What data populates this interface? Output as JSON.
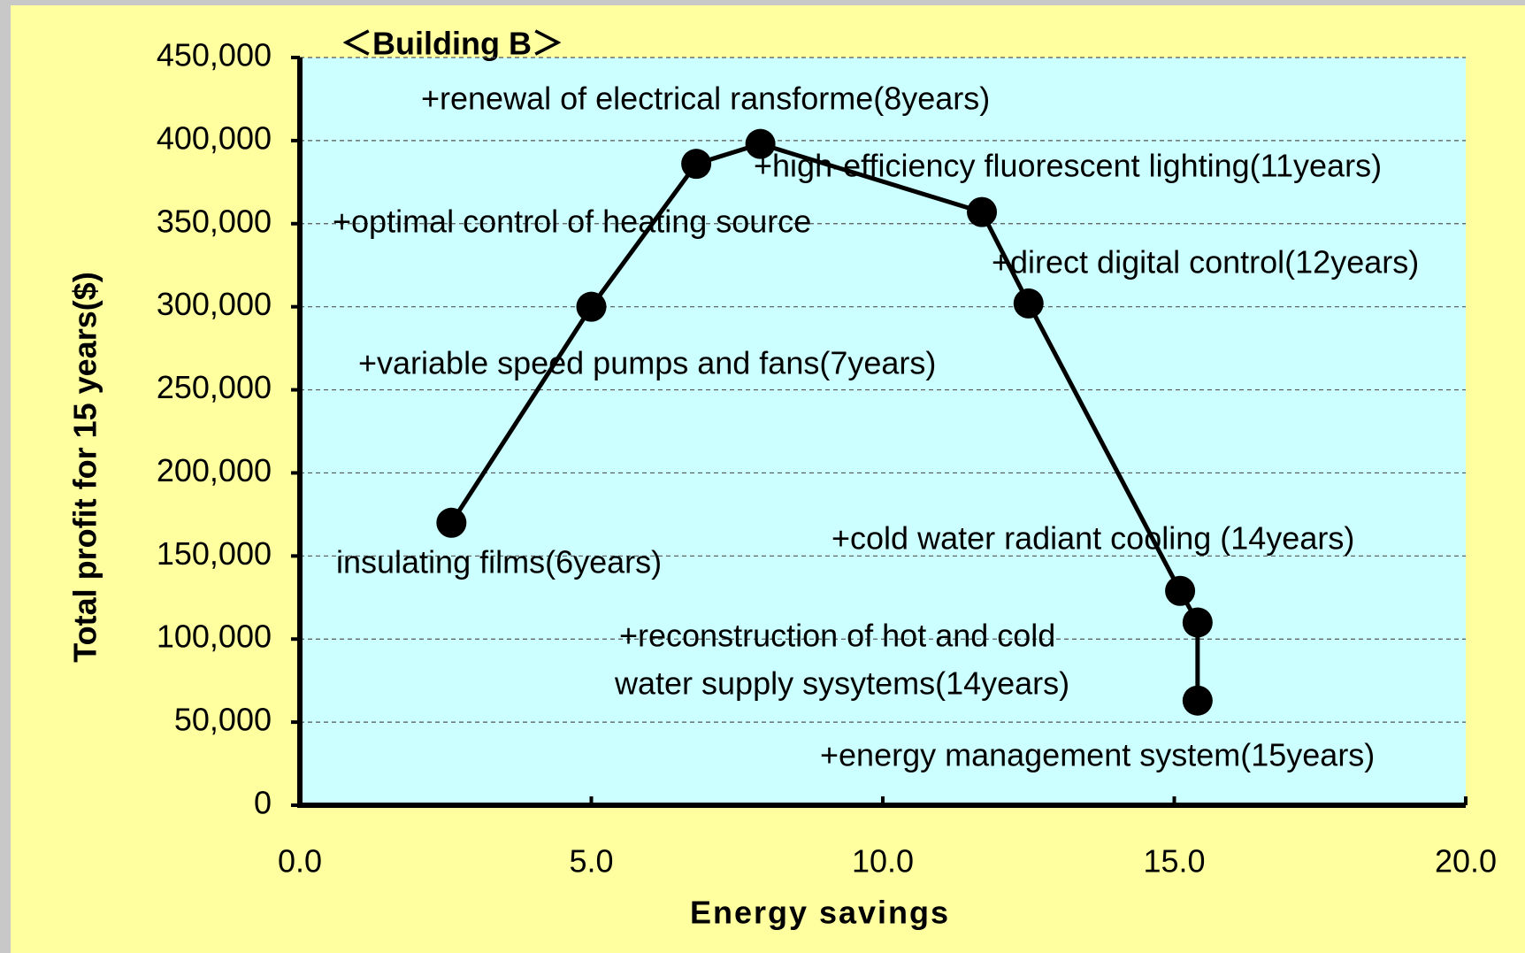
{
  "chart_data": {
    "type": "line",
    "title": "＜Building B＞",
    "x_label": "Energy savings",
    "y_label": "Total profit for 15 years($)",
    "x": [
      2.6,
      5.0,
      6.8,
      7.9,
      11.7,
      12.5,
      15.1,
      15.4,
      15.4
    ],
    "series": [
      {
        "color": "#000000",
        "values": [
          170000,
          300000,
          386000,
          398000,
          357000,
          302000,
          129000,
          110000,
          63000
        ]
      }
    ],
    "annotations": [
      "+renewal of electrical ransforme(8years)",
      "+high-efficiency fluorescent lighting(11years)",
      "+optimal control of heating source",
      "+direct digital control(12years)",
      "+variable speed pumps and fans(7years)",
      "insulating films(6years)",
      "+cold water radiant cooling (14years)",
      "+reconstruction of hot and cold",
      "water supply sysytems(14years)",
      "+energy management system(15years)"
    ],
    "xlim": [
      0,
      20
    ],
    "xticks": [
      {
        "value": 0,
        "label": "0.0"
      },
      {
        "value": 5,
        "label": "5.0"
      },
      {
        "value": 10,
        "label": "10.0"
      },
      {
        "value": 15,
        "label": "15.0"
      },
      {
        "value": 20,
        "label": "20.0"
      }
    ],
    "ylim": [
      0,
      450000
    ],
    "yticks": [
      0,
      {
        "value": 50000,
        "label": "50,000"
      },
      {
        "value": 100000,
        "label": "100,000"
      },
      {
        "value": 150000,
        "label": "150,000"
      },
      {
        "value": 200000,
        "label": "200,000"
      },
      {
        "value": 250000,
        "label": "250,000"
      },
      {
        "value": 300000,
        "label": "300,000"
      },
      {
        "value": 350000,
        "label": "350,000"
      },
      {
        "value": 400000,
        "label": "400,000"
      },
      {
        "value": 450000,
        "label": "450,000"
      }
    ],
    "grid": true
  }
}
